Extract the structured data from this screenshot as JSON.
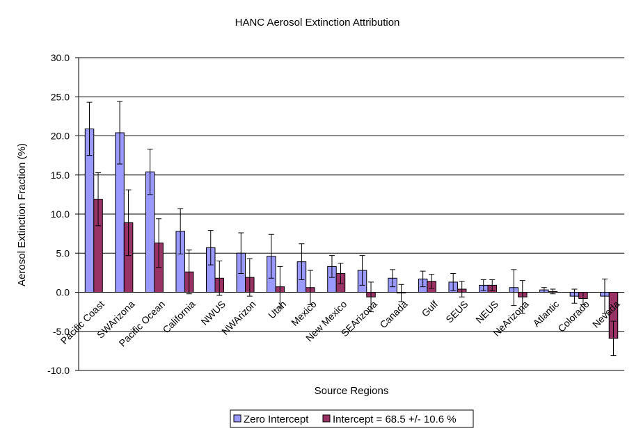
{
  "chart_data": {
    "type": "bar",
    "title": "HANC Aerosol Extinction Attribution",
    "xlabel": "Source Regions",
    "ylabel": "Aerosol Extinction Fraction (%)",
    "ylim": [
      -10,
      30
    ],
    "yticks": [
      30,
      25,
      20,
      15,
      10,
      5,
      0,
      -5,
      -10
    ],
    "ytick_labels": [
      "30.0",
      "25.0",
      "20.0",
      "15.0",
      "10.0",
      "5.0",
      "0.0",
      "-5.0",
      "-10.0"
    ],
    "grid": true,
    "legend_position": "bottom",
    "categories": [
      "Pacific Coast",
      "SWArizona",
      "Pacific Ocean",
      "California",
      "NWUS",
      "NWArizon",
      "Utah",
      "Mexico",
      "New Mexico",
      "SEArizona",
      "Canada",
      "Gulf",
      "SEUS",
      "NEUS",
      "NeArizona",
      "Atlantic",
      "Colorado",
      "Nevada"
    ],
    "series": [
      {
        "name": "Zero Intercept",
        "color": "#9999ff",
        "values": [
          20.9,
          20.4,
          15.4,
          7.8,
          5.7,
          5.0,
          4.6,
          3.9,
          3.3,
          2.8,
          1.8,
          1.7,
          1.3,
          0.9,
          0.6,
          0.3,
          -0.5,
          -0.5
        ],
        "errors": [
          3.4,
          4.0,
          2.9,
          2.9,
          2.2,
          2.6,
          2.8,
          2.3,
          1.4,
          1.9,
          1.1,
          1.0,
          1.1,
          0.7,
          2.3,
          0.3,
          0.9,
          2.2
        ]
      },
      {
        "name": "Intercept = 68.5 +/- 10.6 %",
        "color": "#993366",
        "values": [
          11.9,
          8.9,
          6.3,
          2.6,
          1.8,
          1.9,
          0.7,
          0.6,
          2.4,
          -0.6,
          -0.1,
          1.4,
          0.4,
          0.9,
          -0.6,
          0.1,
          -0.8,
          -5.9
        ],
        "errors": [
          3.4,
          4.2,
          3.1,
          2.8,
          2.2,
          2.4,
          2.6,
          2.2,
          1.3,
          1.9,
          1.1,
          0.9,
          1.0,
          0.7,
          2.1,
          0.3,
          0.8,
          2.2
        ]
      }
    ]
  }
}
